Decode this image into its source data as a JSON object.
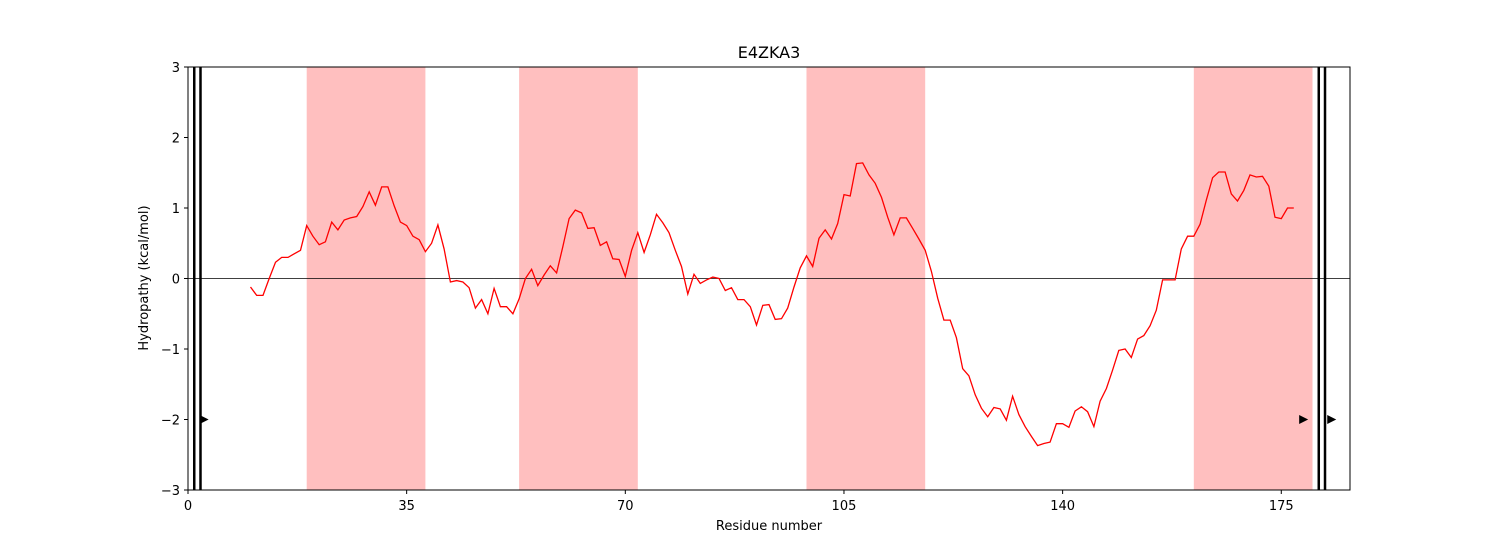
{
  "chart_data": {
    "type": "line",
    "title": "E4ZKA3",
    "xlabel": "Residue number",
    "ylabel": "Hydropathy (kcal/mol)",
    "xlim": [
      0,
      186
    ],
    "ylim": [
      -3,
      3
    ],
    "xticks": [
      0,
      35,
      70,
      105,
      140,
      175
    ],
    "yticks": [
      -3,
      -2,
      -1,
      0,
      1,
      2,
      3
    ],
    "ytick_labels": [
      "−3",
      "−2",
      "−1",
      "0",
      "1",
      "2",
      "3"
    ],
    "line_color": "#ff0000",
    "band_color": "#ffbfbf",
    "shaded_regions": [
      [
        19,
        38
      ],
      [
        53,
        72
      ],
      [
        99,
        118
      ],
      [
        161,
        180
      ]
    ],
    "vertical_lines": [
      1,
      2,
      181,
      182
    ],
    "markers": [
      {
        "x": 2.5,
        "y": -2
      },
      {
        "x": 178.5,
        "y": -2
      },
      {
        "x": 183,
        "y": -2
      }
    ],
    "series": [
      {
        "x": [
          10,
          11,
          12,
          13,
          14,
          15,
          16,
          17,
          18,
          19,
          20,
          21,
          22,
          23,
          24,
          25,
          26,
          27,
          28,
          29,
          30,
          31,
          32,
          33,
          34,
          35,
          36,
          37,
          38,
          39,
          40,
          41,
          42,
          43,
          44,
          45,
          46,
          47,
          48,
          49,
          50,
          51,
          52,
          53,
          54,
          55,
          56,
          57,
          58,
          59,
          60,
          61,
          62,
          63,
          64,
          65,
          66,
          67,
          68,
          69,
          70,
          71,
          72,
          73,
          74,
          75,
          76,
          77,
          78,
          79,
          80,
          81,
          82,
          83,
          84,
          85,
          86,
          87,
          88,
          89,
          90,
          91,
          92,
          93,
          94,
          95,
          96,
          97,
          98,
          99,
          100,
          101,
          102,
          103,
          104,
          105,
          106,
          107,
          108,
          109,
          110,
          111,
          112,
          113,
          114,
          115,
          116,
          117,
          118,
          119,
          120,
          121,
          122,
          123,
          124,
          125,
          126,
          127,
          128,
          129,
          130,
          131,
          132,
          133,
          134,
          135,
          136,
          137,
          138,
          139,
          140,
          141,
          142,
          143,
          144,
          145,
          146,
          147,
          148,
          149,
          150,
          151,
          152,
          153,
          154,
          155,
          156,
          157,
          158,
          159,
          160,
          161,
          162,
          163,
          164,
          165,
          166,
          167,
          168,
          169,
          170,
          171,
          172,
          173,
          174,
          175,
          176,
          177
        ],
        "y": [
          -0.12,
          -0.24,
          -0.24,
          0.0,
          0.23,
          0.3,
          0.3,
          0.35,
          0.4,
          0.75,
          0.6,
          0.48,
          0.52,
          0.8,
          0.69,
          0.83,
          0.86,
          0.88,
          1.02,
          1.23,
          1.04,
          1.3,
          1.3,
          1.03,
          0.8,
          0.75,
          0.6,
          0.55,
          0.38,
          0.5,
          0.76,
          0.42,
          -0.05,
          -0.03,
          -0.05,
          -0.13,
          -0.42,
          -0.3,
          -0.5,
          -0.14,
          -0.4,
          -0.4,
          -0.5,
          -0.29,
          0.0,
          0.13,
          -0.1,
          0.05,
          0.18,
          0.08,
          0.45,
          0.85,
          0.97,
          0.93,
          0.71,
          0.72,
          0.47,
          0.52,
          0.28,
          0.27,
          0.03,
          0.4,
          0.65,
          0.37,
          0.62,
          0.91,
          0.79,
          0.65,
          0.4,
          0.17,
          -0.22,
          0.06,
          -0.07,
          -0.02,
          0.02,
          0.0,
          -0.17,
          -0.13,
          -0.3,
          -0.3,
          -0.4,
          -0.66,
          -0.38,
          -0.37,
          -0.58,
          -0.57,
          -0.42,
          -0.12,
          0.15,
          0.32,
          0.17,
          0.57,
          0.69,
          0.56,
          0.78,
          1.19,
          1.17,
          1.63,
          1.64,
          1.47,
          1.35,
          1.15,
          0.87,
          0.62,
          0.86,
          0.86,
          0.71,
          0.56,
          0.4,
          0.1,
          -0.28,
          -0.59,
          -0.59,
          -0.84,
          -1.28,
          -1.38,
          -1.65,
          -1.84,
          -1.96,
          -1.83,
          -1.85,
          -2.01,
          -1.67,
          -1.93,
          -2.1,
          -2.24,
          -2.37,
          -2.34,
          -2.32,
          -2.06,
          -2.06,
          -2.11,
          -1.88,
          -1.82,
          -1.89,
          -2.1,
          -1.74,
          -1.56,
          -1.3,
          -1.02,
          -1.0,
          -1.12,
          -0.86,
          -0.81,
          -0.67,
          -0.45,
          -0.02,
          -0.02,
          -0.02,
          0.42,
          0.6,
          0.6,
          0.77,
          1.11,
          1.43,
          1.51,
          1.51,
          1.2,
          1.1,
          1.25,
          1.47,
          1.44,
          1.45,
          1.31,
          0.87,
          0.85,
          1.0,
          1.0
        ]
      }
    ]
  }
}
